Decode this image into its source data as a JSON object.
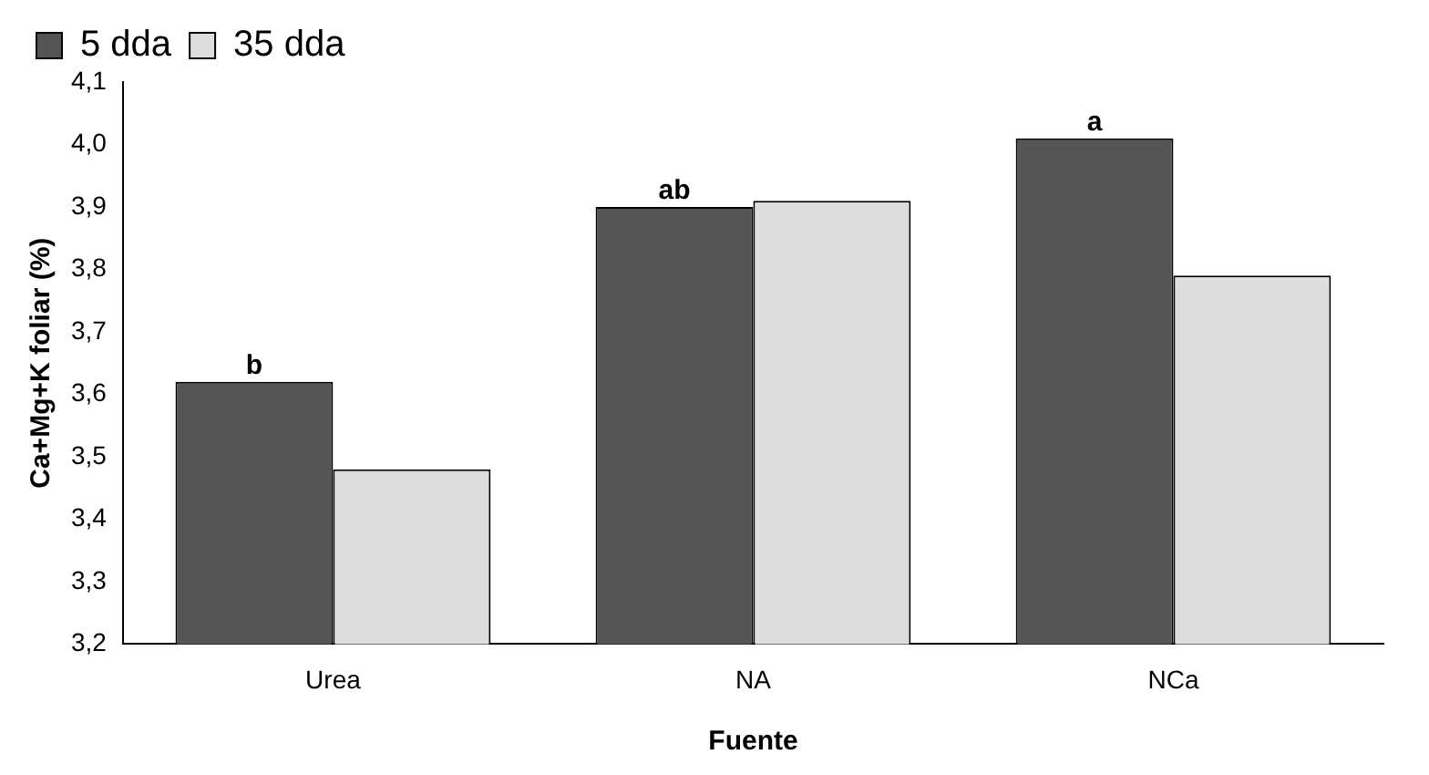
{
  "chart_data": {
    "type": "bar",
    "xlabel": "Fuente",
    "ylabel": "Ca+Mg+K foliar (%)",
    "categories": [
      "Urea",
      "NA",
      "NCa"
    ],
    "series": [
      {
        "name": "5 dda",
        "color": "#555555",
        "values": [
          3.62,
          3.9,
          4.01
        ]
      },
      {
        "name": "35 dda",
        "color": "#dddddd",
        "values": [
          3.48,
          3.91,
          3.79
        ]
      }
    ],
    "ylim": [
      3.2,
      4.1
    ],
    "yticks": [
      {
        "value": 3.2,
        "label": "3,2"
      },
      {
        "value": 3.3,
        "label": "3,3"
      },
      {
        "value": 3.4,
        "label": "3,4"
      },
      {
        "value": 3.5,
        "label": "3,5"
      },
      {
        "value": 3.6,
        "label": "3,6"
      },
      {
        "value": 3.7,
        "label": "3,7"
      },
      {
        "value": 3.8,
        "label": "3,8"
      },
      {
        "value": 3.9,
        "label": "3,9"
      },
      {
        "value": 4.0,
        "label": "4,0"
      },
      {
        "value": 4.1,
        "label": "4,1"
      }
    ],
    "annotations": [
      {
        "text": "b",
        "x": "Urea",
        "y": 3.62
      },
      {
        "text": "ab",
        "x": "NA",
        "y": 3.9
      },
      {
        "text": "a",
        "x": "NCa",
        "y": 4.01
      }
    ],
    "grid": false,
    "legend": "top left"
  }
}
